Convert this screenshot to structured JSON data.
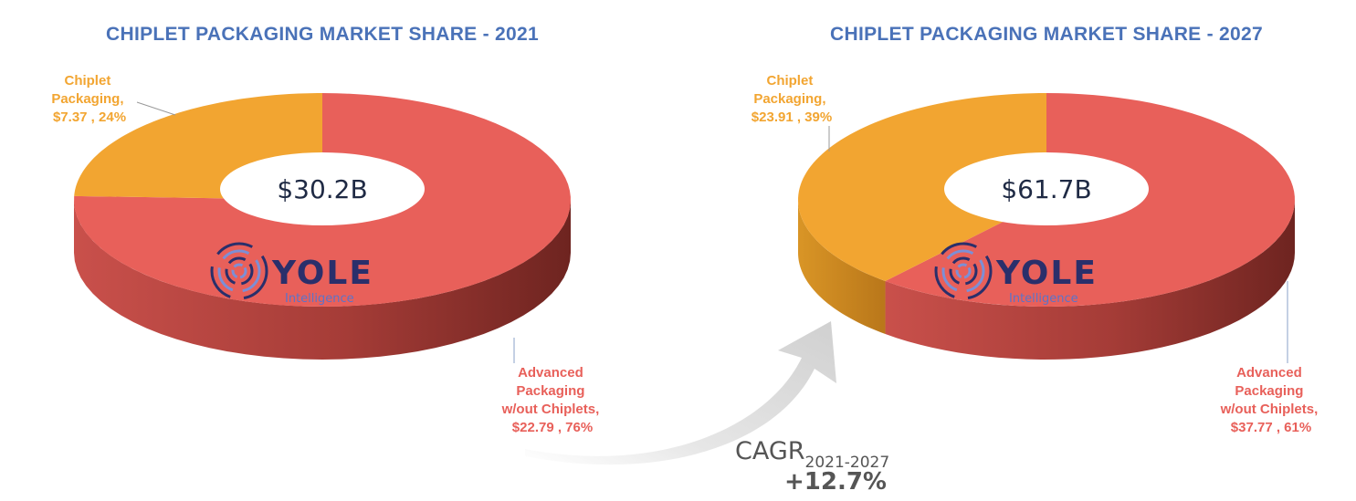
{
  "colors": {
    "advanced": "#E8605A",
    "advanced_side": "#B8443F",
    "chiplet": "#F2A531",
    "chiplet_side": "#C9841F",
    "title": "#4A72B8"
  },
  "chart_data": [
    {
      "type": "pie",
      "title": "CHIPLET PACKAGING MARKET SHARE - 2021",
      "center_label": "$30.2B",
      "slices": [
        {
          "name": "Chiplet Packaging",
          "value": 7.37,
          "percent": 24,
          "label_lines": [
            "Chiplet",
            "Packaging,",
            "$7.37 , 24%"
          ]
        },
        {
          "name": "Advanced Packaging w/out Chiplets",
          "value": 22.79,
          "percent": 76,
          "label_lines": [
            "Advanced",
            "Packaging",
            "w/out Chiplets,",
            "$22.79 , 76%"
          ]
        }
      ]
    },
    {
      "type": "pie",
      "title": "CHIPLET PACKAGING MARKET SHARE - 2027",
      "center_label": "$61.7B",
      "slices": [
        {
          "name": "Chiplet Packaging",
          "value": 23.91,
          "percent": 39,
          "label_lines": [
            "Chiplet",
            "Packaging,",
            "$23.91 , 39%"
          ]
        },
        {
          "name": "Advanced Packaging w/out Chiplets",
          "value": 37.77,
          "percent": 61,
          "label_lines": [
            "Advanced",
            "Packaging",
            "w/out Chiplets,",
            "$37.77 , 61%"
          ]
        }
      ]
    }
  ],
  "cagr": {
    "label": "CAGR",
    "period": "2021-2027",
    "value": "+12.7%"
  },
  "logo": {
    "name": "YOLE",
    "sub": "Intelligence"
  }
}
